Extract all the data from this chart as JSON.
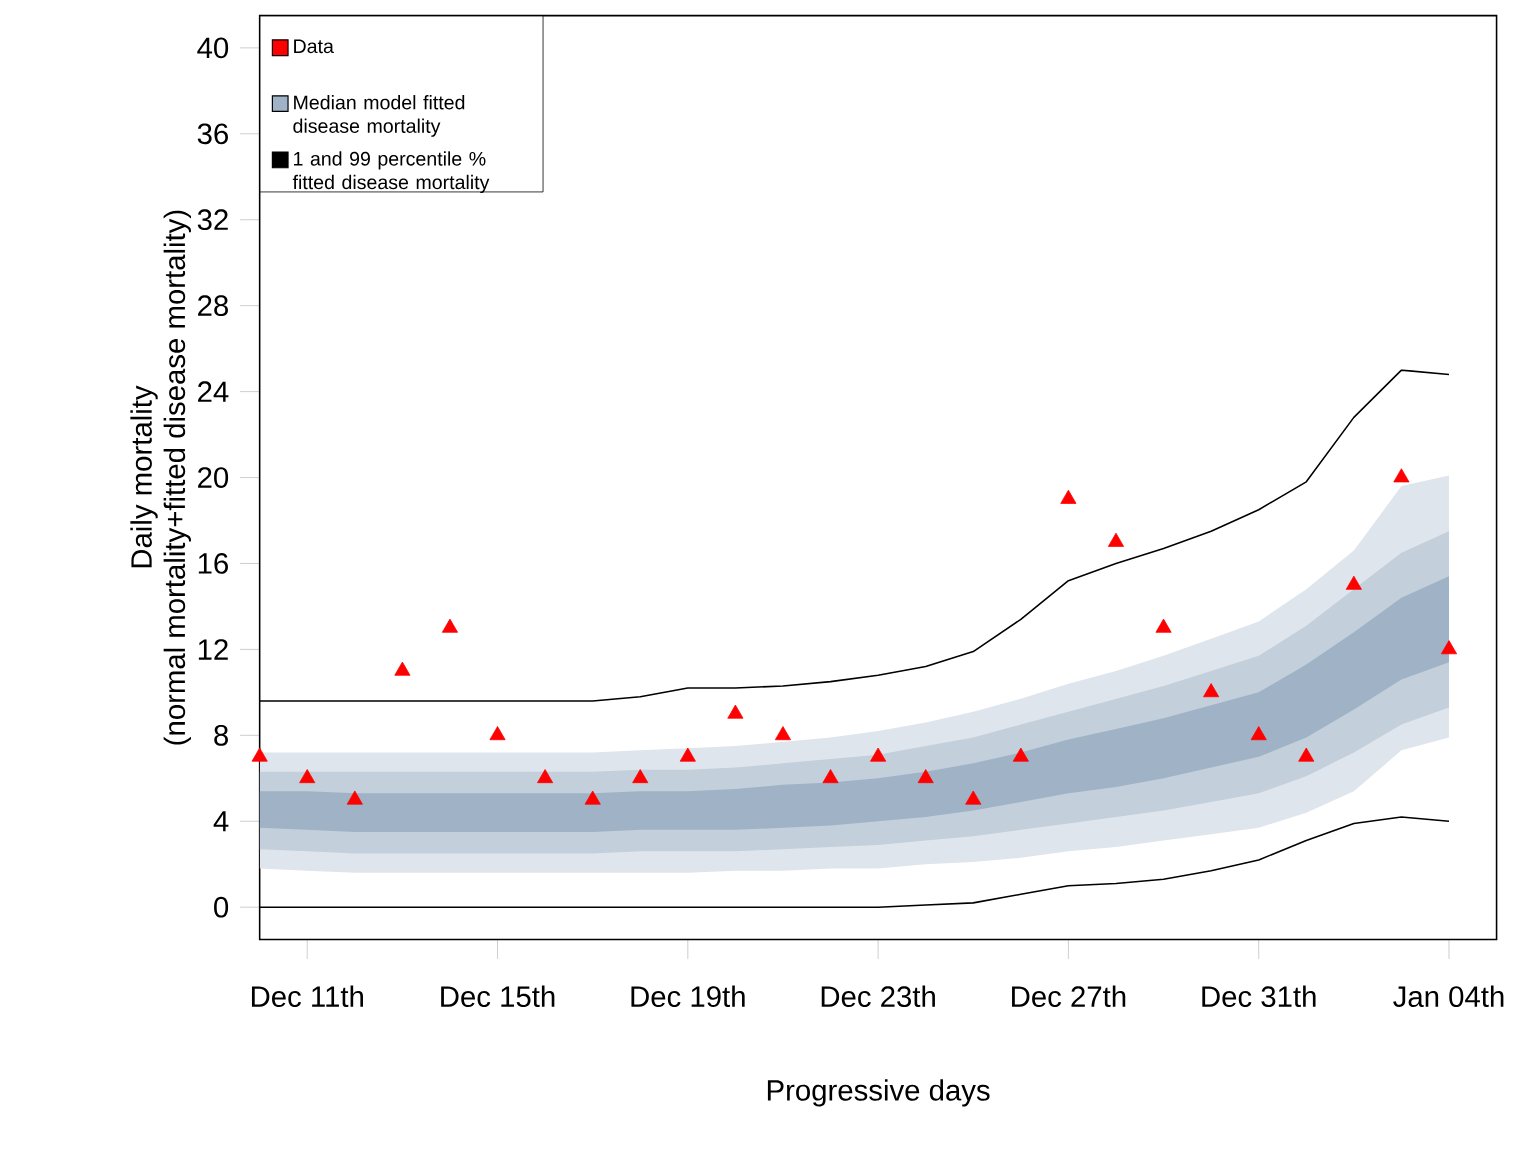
{
  "chart_data": {
    "type": "line",
    "xlabel": "Progressive days",
    "ylabel": "Daily mortality\n(normal mortality+fitted disease mortality)",
    "categories": [
      null,
      "Dec 11th",
      null,
      null,
      null,
      "Dec 15th",
      null,
      null,
      null,
      "Dec 19th",
      null,
      null,
      null,
      "Dec 23th",
      null,
      null,
      null,
      "Dec 27th",
      null,
      null,
      null,
      "Dec 31th",
      null,
      null,
      null,
      "Jan 04th"
    ],
    "ylim": [
      -1.5,
      41.5
    ],
    "yticks": [
      0,
      4,
      8,
      12,
      16,
      20,
      24,
      28,
      32,
      36,
      40
    ],
    "grid": false,
    "legend": "top left",
    "series": [
      {
        "name": "Data",
        "type": "scatter",
        "color": "#ff0000",
        "marker": "triangle",
        "values": [
          7,
          6,
          5,
          11,
          13,
          8,
          6,
          5,
          6,
          7,
          9,
          8,
          6,
          7,
          6,
          5,
          7,
          19,
          17,
          13,
          10,
          8,
          7,
          15,
          20,
          12
        ]
      },
      {
        "name": "Median model fitted disease mortality",
        "color": "#9fb2c6",
        "values": [
          null,
          null,
          null,
          null,
          null,
          null,
          null,
          null,
          null,
          null,
          null,
          null,
          null,
          null,
          null,
          null,
          null,
          null,
          null,
          null,
          null,
          null,
          null,
          null,
          null,
          null
        ],
        "lower": [
          3.7,
          3.6,
          3.5,
          3.5,
          3.5,
          3.5,
          3.5,
          3.5,
          3.6,
          3.6,
          3.6,
          3.7,
          3.8,
          4.0,
          4.2,
          4.5,
          4.9,
          5.3,
          5.6,
          6.0,
          6.5,
          7.0,
          7.9,
          9.2,
          10.6,
          11.4
        ],
        "upper": [
          5.4,
          5.4,
          5.3,
          5.3,
          5.3,
          5.3,
          5.3,
          5.3,
          5.4,
          5.4,
          5.5,
          5.7,
          5.8,
          6.0,
          6.3,
          6.7,
          7.2,
          7.8,
          8.3,
          8.8,
          9.4,
          10.0,
          11.3,
          12.8,
          14.4,
          15.4
        ]
      },
      {
        "color": "#c3cfdb",
        "values": [
          null,
          null,
          null,
          null,
          null,
          null,
          null,
          null,
          null,
          null,
          null,
          null,
          null,
          null,
          null,
          null,
          null,
          null,
          null,
          null,
          null,
          null,
          null,
          null,
          null,
          null
        ],
        "lower": [
          2.7,
          2.6,
          2.5,
          2.5,
          2.5,
          2.5,
          2.5,
          2.5,
          2.6,
          2.6,
          2.6,
          2.7,
          2.8,
          2.9,
          3.1,
          3.3,
          3.6,
          3.9,
          4.2,
          4.5,
          4.9,
          5.3,
          6.1,
          7.2,
          8.5,
          9.3
        ],
        "upper": [
          6.3,
          6.3,
          6.3,
          6.3,
          6.3,
          6.3,
          6.3,
          6.3,
          6.4,
          6.4,
          6.5,
          6.7,
          6.9,
          7.1,
          7.5,
          7.9,
          8.5,
          9.1,
          9.7,
          10.3,
          11.0,
          11.7,
          13.1,
          14.8,
          16.5,
          17.5
        ]
      },
      {
        "color": "#dfe5ec",
        "values": [
          null,
          null,
          null,
          null,
          null,
          null,
          null,
          null,
          null,
          null,
          null,
          null,
          null,
          null,
          null,
          null,
          null,
          null,
          null,
          null,
          null,
          null,
          null,
          null,
          null,
          null
        ],
        "lower": [
          1.8,
          1.7,
          1.6,
          1.6,
          1.6,
          1.6,
          1.6,
          1.6,
          1.6,
          1.6,
          1.7,
          1.7,
          1.8,
          1.8,
          2.0,
          2.1,
          2.3,
          2.6,
          2.8,
          3.1,
          3.4,
          3.7,
          4.4,
          5.4,
          7.3,
          7.9
        ],
        "upper": [
          7.2,
          7.2,
          7.2,
          7.2,
          7.2,
          7.2,
          7.2,
          7.2,
          7.3,
          7.4,
          7.5,
          7.7,
          7.9,
          8.2,
          8.6,
          9.1,
          9.7,
          10.4,
          11.0,
          11.7,
          12.5,
          13.3,
          14.8,
          16.6,
          19.6,
          20.1
        ]
      },
      {
        "name": "1 and 99 percentile %\n fitted disease mortality",
        "color": "#000000",
        "values": [
          9.6,
          9.6,
          9.6,
          9.6,
          9.6,
          9.6,
          9.6,
          9.6,
          9.8,
          10.2,
          10.2,
          10.3,
          10.5,
          10.8,
          11.2,
          11.9,
          13.4,
          15.2,
          16.0,
          16.7,
          17.5,
          18.5,
          19.8,
          22.8,
          25.0,
          24.8
        ]
      },
      {
        "color": "#000000",
        "values": [
          0,
          0,
          0,
          0,
          0,
          0,
          0,
          0,
          0,
          0,
          0,
          0,
          0,
          0,
          0.1,
          0.2,
          0.6,
          1.0,
          1.1,
          1.3,
          1.7,
          2.2,
          3.1,
          3.9,
          4.2,
          4.0
        ]
      }
    ]
  }
}
